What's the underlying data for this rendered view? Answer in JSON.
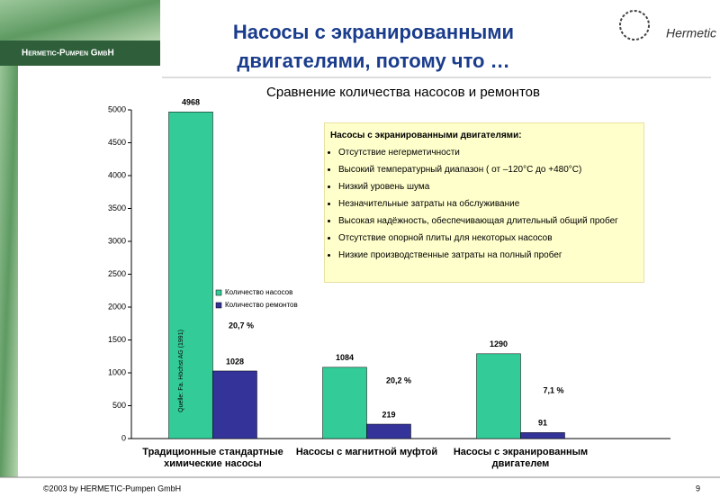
{
  "header": {
    "company": "Hermetic-Pumpen GmbH",
    "title_lines": [
      "Насосы с экранированными",
      "двигателями, потому что …"
    ],
    "logo": "Hermetic"
  },
  "chart_data": {
    "type": "bar",
    "title": "Сравнение количества насосов и ремонтов",
    "categories": [
      "Традиционные стандартные химические насосы",
      "Насосы с магнитной муфтой",
      "Насосы с экранированным двигателем"
    ],
    "series": [
      {
        "name": "Количество насосов",
        "color": "#33cc99",
        "values": [
          4968,
          1084,
          1290
        ]
      },
      {
        "name": "Количество ремонтов",
        "color": "#333399",
        "values": [
          1028,
          219,
          91
        ]
      }
    ],
    "ylim": [
      0,
      5000
    ],
    "yticks": [
      0,
      500,
      1000,
      1500,
      2000,
      2500,
      3000,
      3500,
      4000,
      4500,
      5000
    ],
    "grid": false,
    "annotations": [
      "20,7 %",
      "20,2 %",
      "7,1 %"
    ],
    "source": "Quelle: Fa. Höchst AG (1991)"
  },
  "callout": {
    "heading": "Насосы с экранированными двигателями:",
    "items": [
      "Отсутствие негерметичности",
      "Высокий температурный диапазон ( от –120°C до +480°C)",
      "Низкий уровень шума",
      "Незначительные затраты на обслуживание",
      "Высокая надёжность, обеспечивающая длительный общий пробег",
      "Отсутствие опорной плиты для некоторых насосов",
      "Низкие производственные затраты на полный пробег"
    ]
  },
  "footer": {
    "copyright": "©2003 by HERMETIC-Pumpen GmbH",
    "page": "9"
  }
}
